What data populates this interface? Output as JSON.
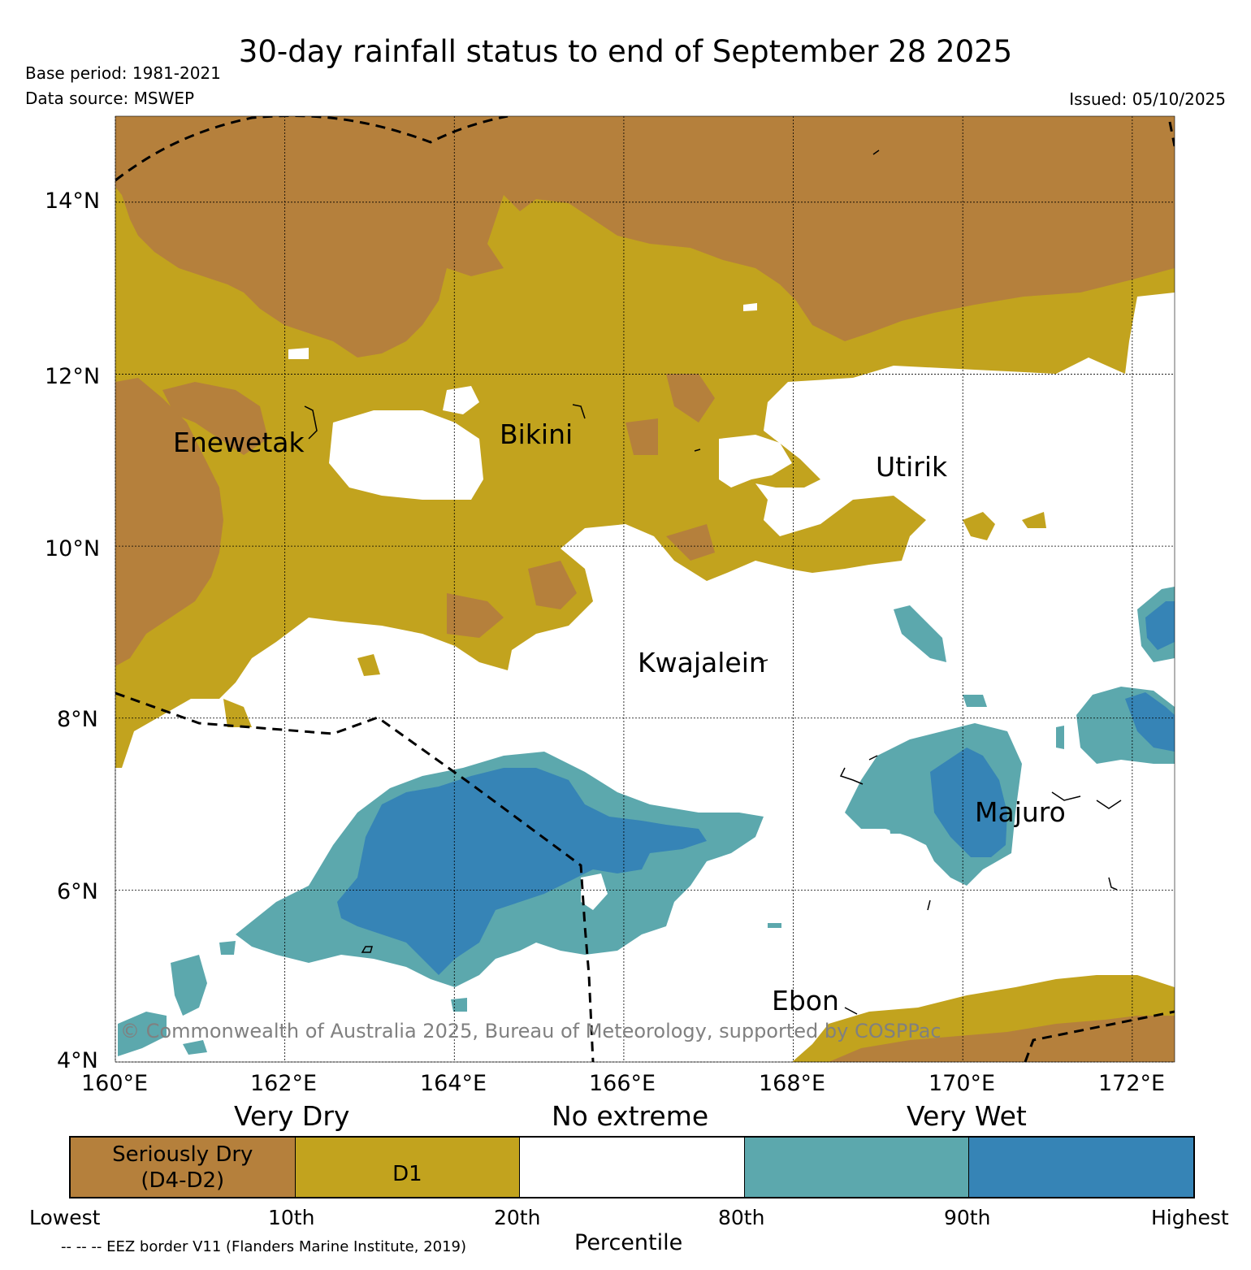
{
  "title": "30-day rainfall status to end of September 28 2025",
  "base_period": "Base period: 1981-2021",
  "data_source": "Data source: MSWEP",
  "issued": "Issued: 05/10/2025",
  "colors": {
    "seriously_dry": "#b5803c",
    "d1": "#c2a31e",
    "no_extreme": "#ffffff",
    "wet": "#5ca8ad",
    "very_wet": "#3684b6",
    "grid": "#000000",
    "copyright": "#808080"
  },
  "map": {
    "lon_range": [
      160,
      172.5
    ],
    "lat_range": [
      4,
      15
    ],
    "lon_ticks": [
      "160°E",
      "162°E",
      "164°E",
      "166°E",
      "168°E",
      "170°E",
      "172°E"
    ],
    "lat_ticks": [
      "14°N",
      "12°N",
      "10°N",
      "8°N",
      "6°N",
      "4°N"
    ],
    "places": [
      {
        "name": "Enewetak",
        "lon": 162.2,
        "lat": 11.4
      },
      {
        "name": "Bikini",
        "lon": 165.5,
        "lat": 11.6
      },
      {
        "name": "Utirik",
        "lon": 169.8,
        "lat": 11.2
      },
      {
        "name": "Kwajalein",
        "lon": 167.7,
        "lat": 8.7
      },
      {
        "name": "Majuro",
        "lon": 171.2,
        "lat": 7.1
      },
      {
        "name": "Ebon",
        "lon": 168.6,
        "lat": 4.6
      }
    ],
    "copyright": "© Commonwealth of Australia 2025, Bureau of Meteorology, supported by COSPPac"
  },
  "colorbar": {
    "headers": [
      "Very Dry",
      "No extreme",
      "Very Wet"
    ],
    "cells": [
      {
        "label_line1": "Seriously Dry",
        "label_line2": "(D4-D2)",
        "color": "#b5803c"
      },
      {
        "label_line1": "D1",
        "label_line2": "",
        "color": "#c2a31e"
      },
      {
        "label_line1": "",
        "label_line2": "",
        "color": "#ffffff"
      },
      {
        "label_line1": "",
        "label_line2": "",
        "color": "#5ca8ad"
      },
      {
        "label_line1": "",
        "label_line2": "",
        "color": "#3684b6"
      }
    ],
    "ticks": [
      "Lowest",
      "10th",
      "20th",
      "80th",
      "90th",
      "Highest"
    ],
    "xlabel": "Percentile"
  },
  "footer_eez": "-- -- -- EEZ border V11 (Flanders Marine Institute, 2019)"
}
